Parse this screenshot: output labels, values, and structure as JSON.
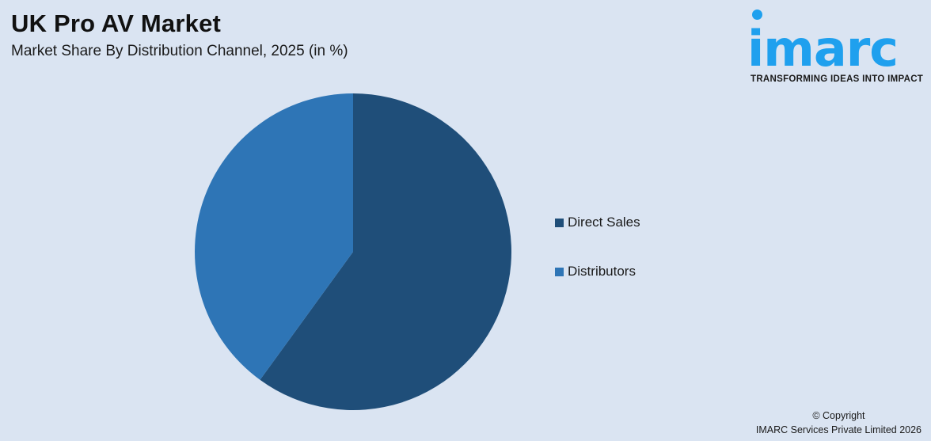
{
  "header": {
    "title": "UK Pro AV Market",
    "subtitle": "Market Share By Distribution Channel, 2025 (in %)"
  },
  "logo": {
    "word": "imarc",
    "tagline": "TRANSFORMING IDEAS INTO IMPACT",
    "color": "#1fa0ee"
  },
  "legend": {
    "items": [
      {
        "label": "Direct Sales",
        "color": "#1f4e79"
      },
      {
        "label": "Distributors",
        "color": "#2e75b6"
      }
    ]
  },
  "footer": {
    "line1": "© Copyright",
    "line2": "IMARC Services Private Limited 2026"
  },
  "chart_data": {
    "type": "pie",
    "title": "UK Pro AV Market",
    "subtitle": "Market Share By Distribution Channel, 2025 (in %)",
    "categories": [
      "Direct Sales",
      "Distributors"
    ],
    "values": [
      60,
      40
    ],
    "colors": [
      "#1f4e79",
      "#2e75b6"
    ],
    "start_angle_deg": 0,
    "direction": "clockwise",
    "legend_position": "right",
    "data_labels": false
  }
}
